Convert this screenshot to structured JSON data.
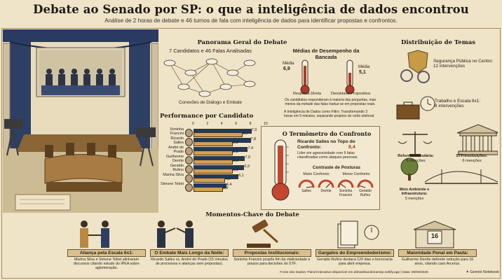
{
  "header": {
    "title": "Debate ao Senado por SP: o que a inteligência de dados encontrou",
    "subtitle": "Análise de 2 horas de debate e 46 turnos de fala com inteligência de dados para identificar propostas e confrontos."
  },
  "overview": {
    "title": "Panorama Geral do Debate",
    "count_label": "7 Candidatos e 46 Falas Analisadas",
    "network_caption": "Conexões de Diálogo e Embate"
  },
  "bench": {
    "title": "Médias de Desempenho da Bancada",
    "left_label": "Média",
    "left_value": "6,9",
    "left_caption": "Resposta Direta",
    "right_label": "Média",
    "right_value": "5,1",
    "right_caption": "Densidade Propositiva",
    "note": "Os candidatos responderam à maioria das perguntas, mas menos da metade das falas traduz-se em propostas reais.",
    "filter_text": "A Inteligência de Dados como Filtro: Transformando 2 horas em 5 minutos, separando projetos do ruído eleitoral."
  },
  "performance": {
    "title": "Performance por Candidato",
    "axis_ticks": [
      "0",
      "2",
      "4",
      "6",
      "8",
      "10"
    ],
    "colors": {
      "dark": "#1f3a5f",
      "light": "#d4a050"
    },
    "candidates": [
      {
        "name": "Soninha Francini",
        "dark": 7.9,
        "light": 6.7
      },
      {
        "name": "Ricardo Salles",
        "dark": 7.8,
        "light": 5.3
      },
      {
        "name": "André do Prado",
        "dark": 7.4,
        "light": 5.3
      },
      {
        "name": "Guilherme Derrite",
        "dark": 7.0,
        "light": 5.3
      },
      {
        "name": "Geraldo Rufino",
        "dark": 6.9,
        "light": 5.3
      },
      {
        "name": "Marina Silva",
        "dark": 6.1,
        "light": 4.2
      },
      {
        "name": "Simone Tebet",
        "dark": 4.4,
        "light": 3.9
      }
    ],
    "value_labels": {
      "dark": [
        "7,9",
        "7,8",
        "7,4",
        "7,0",
        "6,9",
        "6,1",
        "4,4"
      ],
      "light": [
        "6,7",
        "5,3",
        "5,3",
        "5,3",
        "5,3",
        "4,2",
        "3,9"
      ]
    }
  },
  "thermo": {
    "title": "O Termômetro do Confronto",
    "leader_title": "Ricardo Salles no Topo do Confronto:",
    "leader_value": "8,4",
    "leader_desc": "Líder em agressividade com 6 falas classificadas como ataques pessoais.",
    "contrast_title": "Contraste de Posturas",
    "max_label": "Maior Confronto",
    "min_label": "Menor Confronto",
    "gauges": [
      {
        "name": "Salles",
        "level": 0.95
      },
      {
        "name": "Derrite",
        "level": 0.75
      },
      {
        "name": "Soninha Francini",
        "level": 0.2
      },
      {
        "name": "Geraldo Rufino",
        "level": 0.1
      }
    ]
  },
  "themes": {
    "title": "Distribuição de Temas",
    "items": [
      {
        "label": "Segurança Pública no Centro:",
        "detail": "12 intervenções"
      },
      {
        "label": "Trabalho e Escala 6x1:",
        "detail": "8 intervenções"
      },
      {
        "label": "Reforma Tributária:",
        "detail": "6 menções"
      },
      {
        "label": "STF/Instituições:",
        "detail": "6 menções"
      },
      {
        "label": "Meio Ambiente e Infraestrutura:",
        "detail": "5 menções"
      }
    ]
  },
  "moments": {
    "title": "Momentos-Chave do Debate",
    "items": [
      {
        "title": "Aliança pela Escala 6x1:",
        "desc": "Marina Silva e Simone Tebet alinharam discursos citando estudo do IPEA sobre aglomeração."
      },
      {
        "title": "O Embate Mais Longo da Noite:",
        "desc": "Ricardo Salles vs. André do Prado (15 minutos de processos e alianças sem propostas)."
      },
      {
        "title": "Propostas Institucionais:",
        "desc": "Soninha Francini propõe fim da vitaliciedade e prazos para decisões do STF."
      },
      {
        "title": "Gargalos do Empreendedorismo:",
        "desc": "Geraldo Rufino destaca 120 dias e burocracia para abrir empresa."
      },
      {
        "title": "Maioridade Penal em Pauta:",
        "desc": "Guilherme Derrite defende redução para 16 anos, citando caso Arcerus."
      }
    ],
    "calendar_number": "16"
  },
  "footer": {
    "source": "Fonte dos Dados: Painel interativo disponível em debatebandeiramsp.netlify.app | Data: 09/09/2026",
    "brand": "Gemini Notebook"
  }
}
